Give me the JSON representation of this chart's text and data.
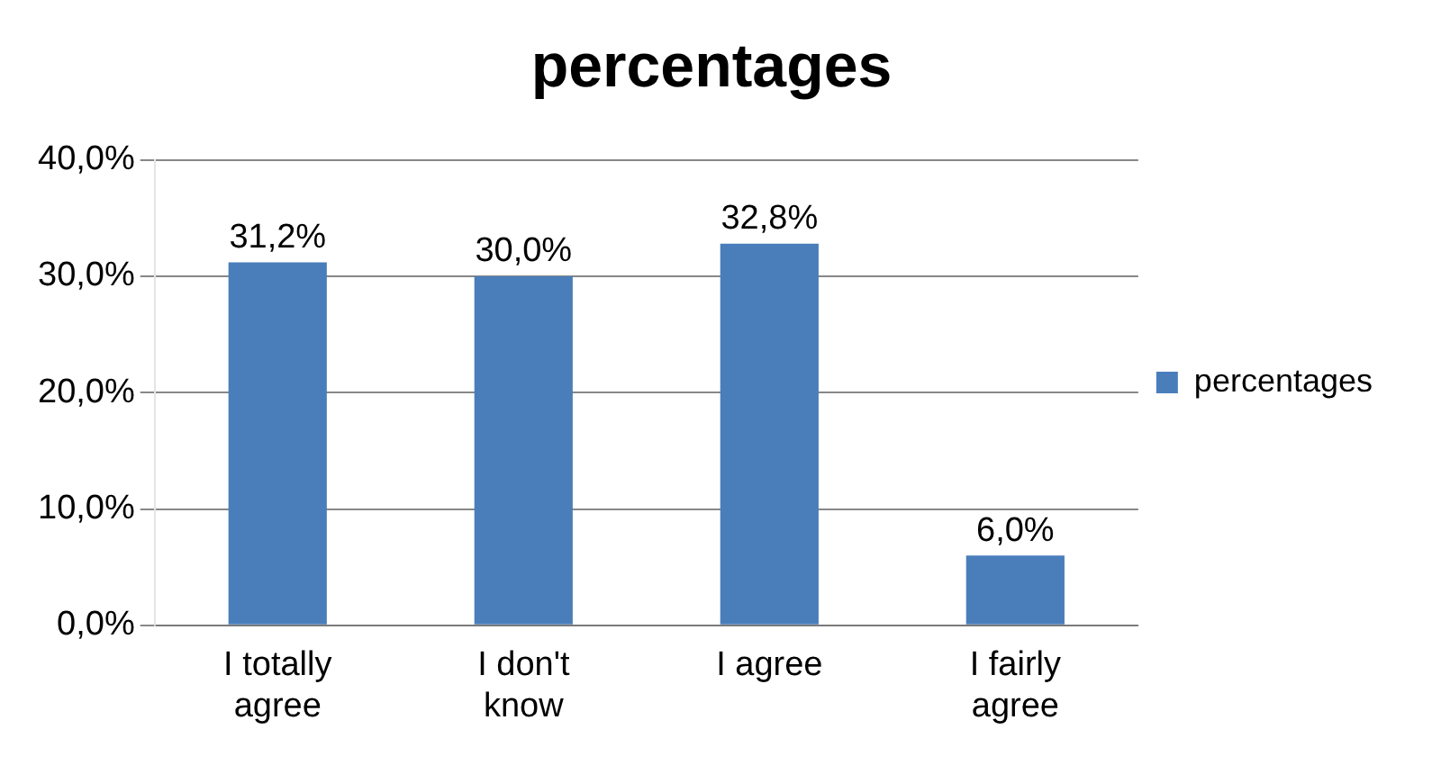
{
  "chart_data": {
    "type": "bar",
    "title": "percentages",
    "categories": [
      "I totally agree",
      "I don't know",
      "I agree",
      "I fairly agree"
    ],
    "series": [
      {
        "name": "percentages",
        "color": "#4a7ebb",
        "values": [
          31.2,
          30.0,
          32.8,
          6.0
        ],
        "value_labels": [
          "31,2%",
          "30,0%",
          "32,8%",
          "6,0%"
        ]
      }
    ],
    "ylim": [
      0,
      40
    ],
    "yticks": [
      {
        "value": 0,
        "label": "0,0%"
      },
      {
        "value": 10,
        "label": "10,0%"
      },
      {
        "value": 20,
        "label": "20,0%"
      },
      {
        "value": 30,
        "label": "30,0%"
      },
      {
        "value": 40,
        "label": "40,0%"
      }
    ],
    "grid": "y",
    "legend": "right"
  }
}
